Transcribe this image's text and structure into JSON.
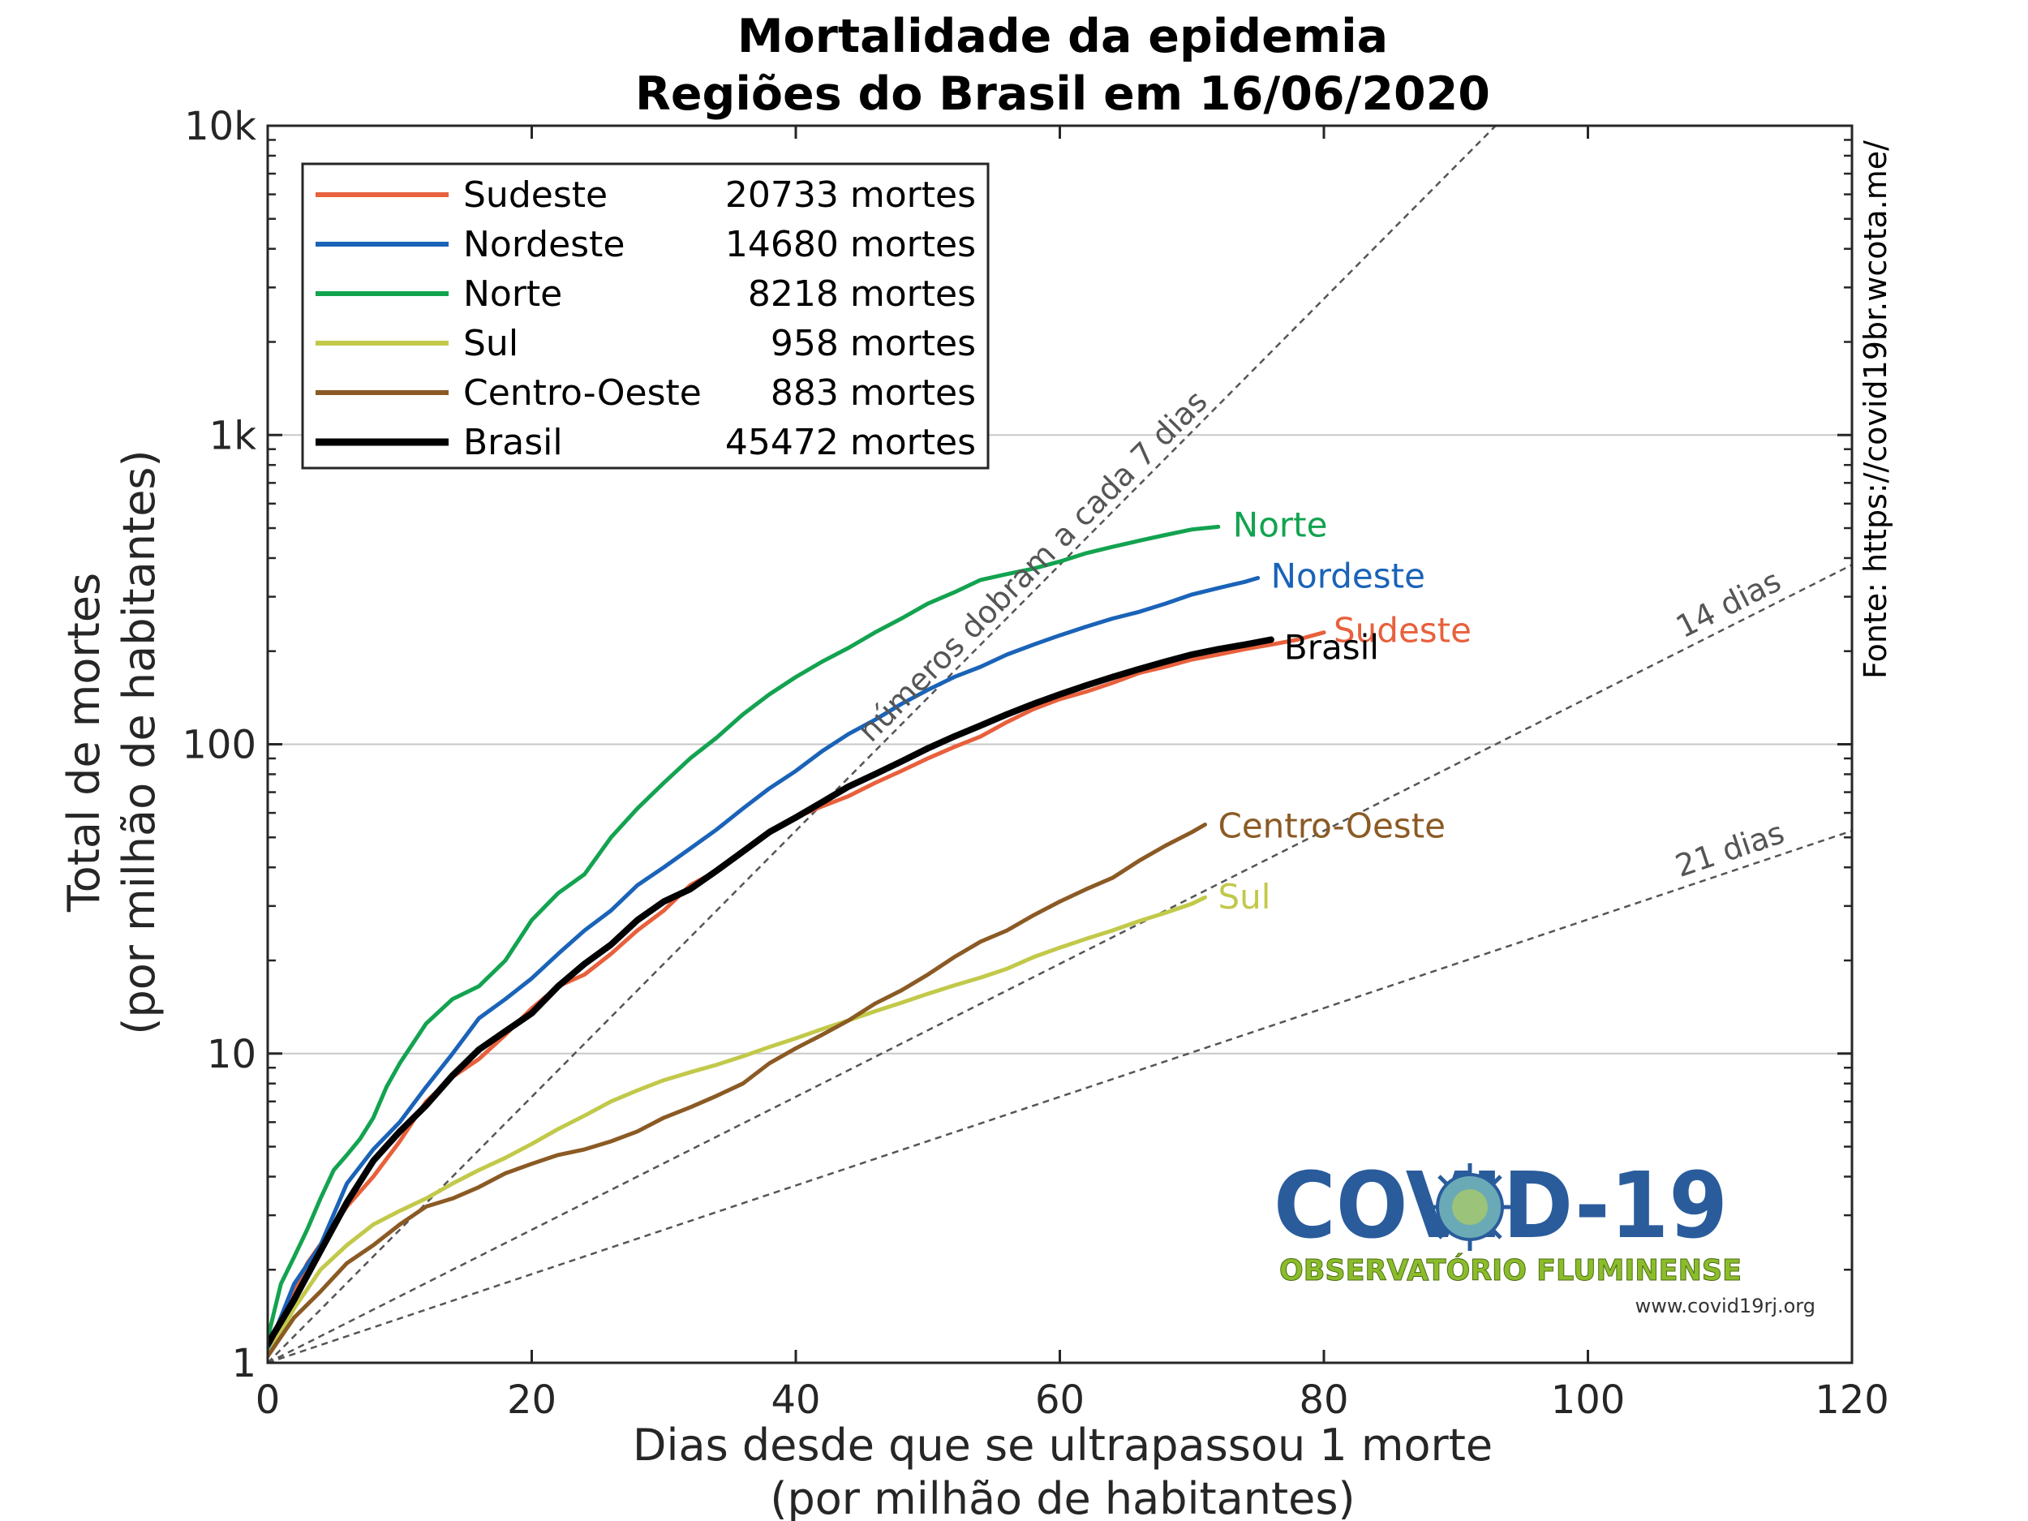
{
  "chart_data": {
    "type": "line",
    "title": [
      "Mortalidade da epidemia",
      "Regiões do Brasil em 16/06/2020"
    ],
    "xlabel": [
      "Dias desde que se ultrapassou 1 morte",
      "(por milhão de habitantes)"
    ],
    "ylabel": [
      "Total de mortes",
      "(por milhão de habitantes)"
    ],
    "xlim": [
      0,
      120
    ],
    "ylim": [
      1,
      10000
    ],
    "yscale": "log",
    "xticks": [
      0,
      20,
      40,
      60,
      80,
      100,
      120
    ],
    "xtick_labels": [
      "0",
      "20",
      "40",
      "60",
      "80",
      "100",
      "120"
    ],
    "yticks": [
      1,
      10,
      100,
      1000,
      10000
    ],
    "ytick_labels": [
      "1",
      "10",
      "100",
      "1k",
      "10k"
    ],
    "grid": "horizontal",
    "legend_position": "top-left",
    "source": "Fonte: https://covid19br.wcota.me/",
    "series": [
      {
        "name": "Sudeste",
        "deaths_label": "20733 mortes",
        "color": "#e8603c",
        "label": "Sudeste",
        "x": [
          0,
          3,
          6,
          8,
          10,
          12,
          14,
          16,
          18,
          20,
          22,
          24,
          26,
          28,
          30,
          32,
          34,
          36,
          38,
          40,
          42,
          44,
          46,
          48,
          50,
          52,
          54,
          56,
          58,
          60,
          62,
          64,
          66,
          68,
          70,
          72,
          74,
          76,
          78,
          80
        ],
        "y": [
          1.1,
          2.1,
          3.2,
          4.0,
          5.2,
          7.0,
          8.4,
          9.6,
          11.5,
          14,
          16.5,
          18,
          21,
          25,
          29,
          35,
          39,
          45,
          52,
          58,
          63,
          68,
          75,
          82,
          90,
          98,
          106,
          118,
          130,
          140,
          148,
          158,
          170,
          178,
          188,
          195,
          203,
          210,
          218,
          230
        ]
      },
      {
        "name": "Nordeste",
        "deaths_label": "14680 mortes",
        "color": "#1a63b8",
        "label": "Nordeste",
        "x": [
          0,
          2,
          4,
          6,
          8,
          10,
          12,
          14,
          16,
          18,
          20,
          22,
          24,
          26,
          28,
          30,
          32,
          34,
          36,
          38,
          40,
          42,
          44,
          46,
          48,
          50,
          52,
          54,
          56,
          58,
          60,
          62,
          64,
          66,
          68,
          70,
          72,
          74,
          75
        ],
        "y": [
          1.1,
          1.8,
          2.4,
          3.8,
          4.9,
          6,
          7.8,
          10,
          13,
          15,
          17.5,
          21,
          25,
          29,
          35,
          40,
          46,
          53,
          62,
          72,
          82,
          95,
          108,
          120,
          135,
          150,
          165,
          178,
          195,
          210,
          225,
          240,
          255,
          268,
          285,
          305,
          320,
          335,
          345
        ]
      },
      {
        "name": "Norte",
        "deaths_label": "8218 mortes",
        "color": "#13a350",
        "label": "Norte",
        "x": [
          0,
          1,
          2,
          3,
          4,
          5,
          6,
          7,
          8,
          9,
          10,
          12,
          14,
          16,
          18,
          20,
          22,
          24,
          26,
          28,
          30,
          32,
          34,
          36,
          38,
          40,
          42,
          44,
          46,
          48,
          50,
          52,
          54,
          56,
          58,
          60,
          62,
          64,
          66,
          68,
          70,
          72
        ],
        "y": [
          1.2,
          1.8,
          2.2,
          2.7,
          3.4,
          4.2,
          4.7,
          5.3,
          6.2,
          7.8,
          9.3,
          12.5,
          15,
          16.5,
          20,
          27,
          33,
          38,
          50,
          62,
          75,
          90,
          105,
          125,
          145,
          165,
          185,
          205,
          230,
          255,
          285,
          310,
          340,
          355,
          370,
          390,
          415,
          435,
          455,
          475,
          495,
          505
        ]
      },
      {
        "name": "Sul",
        "deaths_label": "958 mortes",
        "color": "#c2c94a",
        "label": "Sul",
        "x": [
          0,
          2,
          4,
          6,
          8,
          10,
          12,
          14,
          16,
          18,
          20,
          22,
          24,
          26,
          28,
          30,
          32,
          34,
          36,
          38,
          40,
          42,
          44,
          46,
          48,
          50,
          52,
          54,
          56,
          58,
          60,
          62,
          64,
          66,
          68,
          70,
          71
        ],
        "y": [
          1.05,
          1.5,
          2.0,
          2.4,
          2.8,
          3.1,
          3.4,
          3.8,
          4.2,
          4.6,
          5.1,
          5.7,
          6.3,
          7.0,
          7.6,
          8.2,
          8.7,
          9.2,
          9.8,
          10.5,
          11.2,
          12.0,
          12.8,
          13.7,
          14.6,
          15.6,
          16.6,
          17.6,
          18.8,
          20.5,
          22,
          23.5,
          25,
          26.8,
          28.5,
          30.5,
          32
        ]
      },
      {
        "name": "Centro-Oeste",
        "deaths_label": "883 mortes",
        "color": "#8b5a24",
        "label": "Centro-Oeste",
        "x": [
          0,
          2,
          4,
          6,
          8,
          10,
          12,
          14,
          16,
          18,
          20,
          22,
          24,
          26,
          28,
          30,
          32,
          34,
          36,
          38,
          40,
          42,
          44,
          46,
          48,
          50,
          52,
          54,
          56,
          58,
          60,
          62,
          64,
          66,
          68,
          70,
          71
        ],
        "y": [
          1.05,
          1.4,
          1.7,
          2.1,
          2.4,
          2.8,
          3.2,
          3.4,
          3.7,
          4.1,
          4.4,
          4.7,
          4.9,
          5.2,
          5.6,
          6.2,
          6.7,
          7.3,
          8.0,
          9.3,
          10.4,
          11.5,
          12.8,
          14.5,
          16,
          18,
          20.5,
          23,
          25,
          28,
          31,
          34,
          37,
          42,
          47,
          52,
          55
        ]
      },
      {
        "name": "Brasil",
        "deaths_label": "45472 mortes",
        "color": "#000000",
        "label": "Brasil",
        "x": [
          0,
          2,
          4,
          6,
          8,
          10,
          12,
          14,
          16,
          18,
          20,
          22,
          24,
          26,
          28,
          30,
          32,
          34,
          36,
          38,
          40,
          42,
          44,
          46,
          48,
          50,
          52,
          54,
          56,
          58,
          60,
          62,
          64,
          66,
          68,
          70,
          72,
          74,
          76
        ],
        "y": [
          1.15,
          1.6,
          2.3,
          3.3,
          4.5,
          5.6,
          6.8,
          8.5,
          10.3,
          11.8,
          13.5,
          16.5,
          19.5,
          22.5,
          27,
          31,
          34,
          39,
          45,
          52,
          58,
          65,
          73,
          80,
          88,
          97,
          106,
          115,
          125,
          135,
          145,
          155,
          165,
          175,
          185,
          195,
          203,
          210,
          218
        ]
      }
    ],
    "reference_lines": [
      {
        "label": "números dobram a cada 7 dias",
        "doubling_days": 7
      },
      {
        "label": "14 dias",
        "doubling_days": 14
      },
      {
        "label": "21 dias",
        "doubling_days": 21
      }
    ]
  },
  "logo": {
    "title": "COVID-19",
    "subtitle": "OBSERVATÓRIO FLUMINENSE",
    "url": "www.covid19rj.org",
    "icon": "virus-icon"
  }
}
